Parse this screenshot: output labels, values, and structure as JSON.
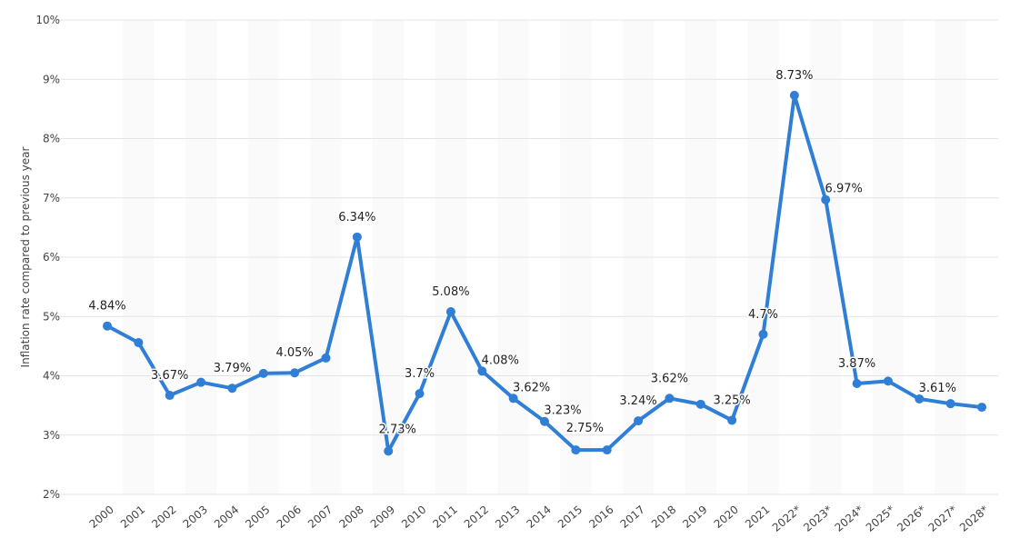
{
  "chart_data": {
    "type": "line",
    "title": "",
    "xlabel": "",
    "ylabel": "Inflation rate compared to previous year",
    "ylim": [
      2,
      10
    ],
    "yticks": [
      "2%",
      "3%",
      "4%",
      "5%",
      "6%",
      "7%",
      "8%",
      "9%",
      "10%"
    ],
    "grid": true,
    "categories": [
      "2000",
      "2001",
      "2002",
      "2003",
      "2004",
      "2005",
      "2006",
      "2007",
      "2008",
      "2009",
      "2010",
      "2011",
      "2012",
      "2013",
      "2014",
      "2015",
      "2016",
      "2017",
      "2018",
      "2019",
      "2020",
      "2021",
      "2022*",
      "2023*",
      "2024*",
      "2025*",
      "2026*",
      "2027*",
      "2028*"
    ],
    "series": [
      {
        "name": "Inflation rate",
        "color": "#2f7fd6",
        "values": [
          4.84,
          4.56,
          3.67,
          3.89,
          3.79,
          4.04,
          4.05,
          4.3,
          6.34,
          2.73,
          3.7,
          5.08,
          4.08,
          3.62,
          3.23,
          2.75,
          2.75,
          3.24,
          3.62,
          3.52,
          3.25,
          4.7,
          8.73,
          6.97,
          3.87,
          3.91,
          3.61,
          3.53,
          3.47
        ],
        "data_labels": [
          "4.84%",
          null,
          "3.67%",
          null,
          "3.79%",
          null,
          "4.05%",
          null,
          "6.34%",
          "2.73%",
          "3.7%",
          "5.08%",
          "4.08%",
          "3.62%",
          "3.23%",
          "2.75%",
          null,
          "3.24%",
          "3.62%",
          null,
          "3.25%",
          "4.7%",
          "8.73%",
          "6.97%",
          "3.87%",
          null,
          "3.61%",
          null,
          null
        ]
      }
    ]
  }
}
